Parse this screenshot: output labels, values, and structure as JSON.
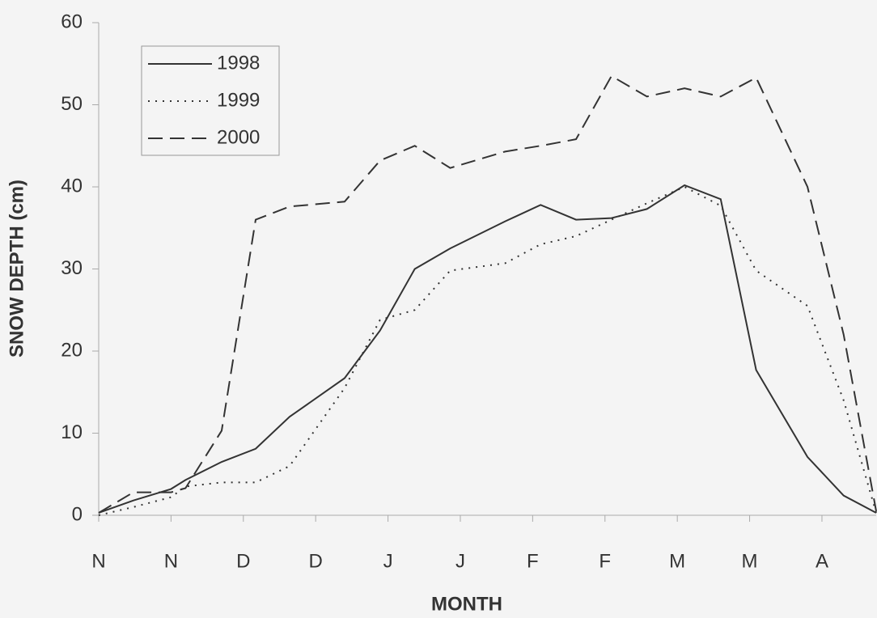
{
  "chart_data": {
    "type": "line",
    "x_label": "MONTH",
    "y_label": "SNOW DEPTH (cm)",
    "x": [
      0,
      0.48,
      1.0,
      1.2,
      1.7,
      2.17,
      2.64,
      3.4,
      3.89,
      4.37,
      4.86,
      5.62,
      6.11,
      6.6,
      7.09,
      7.58,
      8.1,
      8.6,
      9.09,
      9.8,
      10.3,
      10.75
    ],
    "series": [
      {
        "name": "1998",
        "color": "#333333",
        "dash": "solid",
        "values": [
          0.3,
          1.8,
          3.2,
          4.3,
          6.5,
          8.1,
          12,
          16.7,
          22.5,
          30,
          32.5,
          35.8,
          37.8,
          36,
          36.2,
          37.3,
          40.2,
          38.5,
          17.7,
          7.1,
          2.4,
          0.3
        ]
      },
      {
        "name": "1999",
        "color": "#333333",
        "dash": "dotted",
        "values": [
          0,
          1.0,
          2.2,
          3.5,
          4.0,
          4.0,
          6.0,
          15.5,
          23.8,
          25,
          29.8,
          30.7,
          33,
          34,
          36,
          38,
          40,
          37.7,
          29.8,
          25.5,
          14,
          0.3
        ]
      },
      {
        "name": "2000",
        "color": "#333333",
        "dash": "dashed",
        "values": [
          0.3,
          2.8,
          2.8,
          3.3,
          10.3,
          36,
          37.6,
          38.2,
          43.2,
          45,
          42.3,
          44.3,
          45,
          45.8,
          53.5,
          51,
          52,
          51,
          53.3,
          40,
          22,
          0.5
        ]
      }
    ],
    "xlim": [
      0,
      10.75
    ],
    "xticks": [
      {
        "value": 0,
        "label": "N"
      },
      {
        "value": 1,
        "label": "N"
      },
      {
        "value": 2,
        "label": "D"
      },
      {
        "value": 3,
        "label": "D"
      },
      {
        "value": 4,
        "label": "J"
      },
      {
        "value": 5,
        "label": "J"
      },
      {
        "value": 6,
        "label": "F"
      },
      {
        "value": 7,
        "label": "F"
      },
      {
        "value": 8,
        "label": "M"
      },
      {
        "value": 9,
        "label": "M"
      },
      {
        "value": 10,
        "label": "A"
      }
    ],
    "ylim": [
      0,
      60
    ],
    "yticks": [
      0,
      10,
      20,
      30,
      40,
      50,
      60
    ],
    "legend": "top-left"
  }
}
